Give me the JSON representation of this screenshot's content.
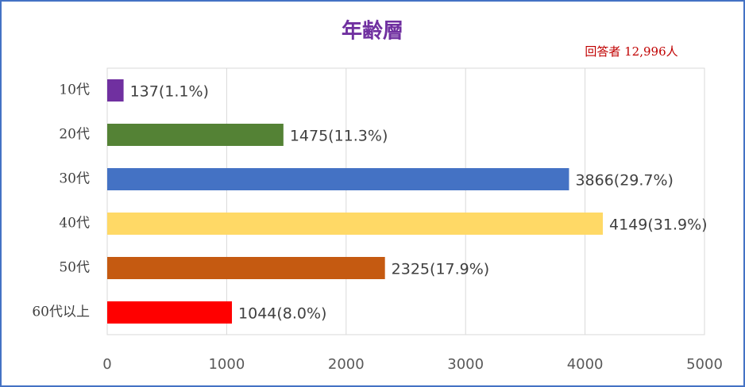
{
  "chart_data": {
    "type": "bar",
    "orientation": "horizontal",
    "title": "年齢層",
    "annotation": "回答者 12,996人",
    "categories": [
      "10代",
      "20代",
      "30代",
      "40代",
      "50代",
      "60代以上"
    ],
    "values": [
      137,
      1475,
      3866,
      4149,
      2325,
      1044
    ],
    "value_labels": [
      "137(1.1%)",
      "1475(11.3%)",
      "3866(29.7%)",
      "4149(31.9%)",
      "2325(17.9%)",
      "1044(8.0%)"
    ],
    "colors": [
      "#7030a0",
      "#548235",
      "#4472c4",
      "#ffd966",
      "#c55a11",
      "#ff0000"
    ],
    "xlim": [
      0,
      5000
    ],
    "xticks": [
      0,
      1000,
      2000,
      3000,
      4000,
      5000
    ],
    "grid": true
  }
}
